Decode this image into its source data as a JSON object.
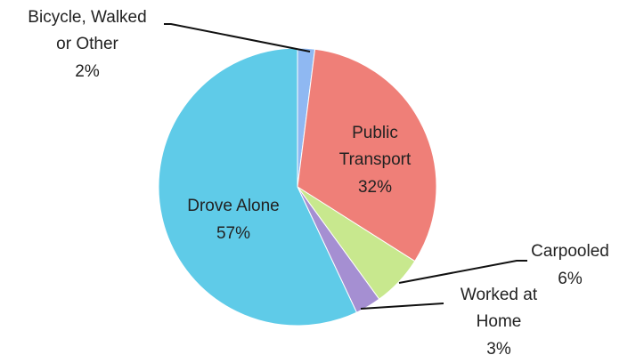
{
  "chart_data": {
    "type": "pie",
    "categories": [
      "Bicycle, Walked\nor Other",
      "Public\nTransport",
      "Carpooled",
      "Worked at\nHome",
      "Drove Alone"
    ],
    "values": [
      2,
      32,
      6,
      3,
      57
    ],
    "value_labels": [
      "2%",
      "32%",
      "6%",
      "3%",
      "57%"
    ],
    "colors": [
      "#8fb8f2",
      "#ef7f78",
      "#c8e88e",
      "#a58fd2",
      "#5fcbe8"
    ]
  }
}
